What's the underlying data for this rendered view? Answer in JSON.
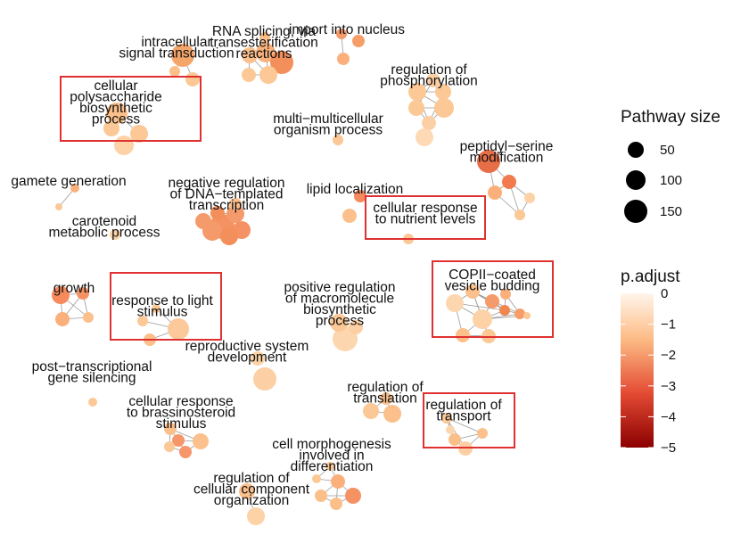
{
  "chart_data": {
    "type": "network",
    "legend": {
      "size_title": "Pathway size",
      "size_entries": [
        {
          "label": "50",
          "value": 50
        },
        {
          "label": "100",
          "value": 100
        },
        {
          "label": "150",
          "value": 150
        }
      ],
      "color_title": "p.adjust",
      "color_ticks": [
        {
          "label": "0",
          "value": 0
        },
        {
          "label": "−1",
          "value": -1
        },
        {
          "label": "−2",
          "value": -2
        },
        {
          "label": "−3",
          "value": -3
        },
        {
          "label": "−4",
          "value": -4
        },
        {
          "label": "−5",
          "value": -5
        }
      ],
      "color_range": [
        -5,
        0
      ],
      "color_stops": [
        "#8b0000",
        "#e34a33",
        "#fdbb84",
        "#fff5eb"
      ]
    },
    "clusters": [
      {
        "label": [
          "intracellular",
          "signal transduction"
        ]
      },
      {
        "label": [
          "RNA splicing, via",
          "transesterification",
          "reactions"
        ]
      },
      {
        "label": [
          "import into nucleus"
        ]
      },
      {
        "label": [
          "cellular",
          "polysaccharide",
          "biosynthetic",
          "process"
        ]
      },
      {
        "label": [
          "regulation of",
          "phosphorylation"
        ]
      },
      {
        "label": [
          "multi−multicellular",
          "organism process"
        ]
      },
      {
        "label": [
          "peptidyl−serine",
          "modification"
        ]
      },
      {
        "label": [
          "gamete generation"
        ]
      },
      {
        "label": [
          "negative regulation",
          "of DNA−templated",
          "transcription"
        ]
      },
      {
        "label": [
          "lipid localization"
        ]
      },
      {
        "label": [
          "cellular response",
          "to nutrient levels"
        ]
      },
      {
        "label": [
          "carotenoid",
          "metabolic process"
        ]
      },
      {
        "label": [
          "growth"
        ]
      },
      {
        "label": [
          "response to light",
          "stimulus"
        ]
      },
      {
        "label": [
          "positive regulation",
          "of macromolecule",
          "biosynthetic",
          "process"
        ]
      },
      {
        "label": [
          "COPII−coated",
          "vesicle budding"
        ]
      },
      {
        "label": [
          "reproductive system",
          "development"
        ]
      },
      {
        "label": [
          "post−transcriptional",
          "gene silencing"
        ]
      },
      {
        "label": [
          "regulation of",
          "translation"
        ]
      },
      {
        "label": [
          "regulation of",
          "transport"
        ]
      },
      {
        "label": [
          "cellular response",
          "to brassinosteroid",
          "stimulus"
        ]
      },
      {
        "label": [
          "cell morphogenesis",
          "involved in",
          "differentiation"
        ]
      },
      {
        "label": [
          "regulation of",
          "cellular component",
          "organization"
        ]
      }
    ]
  }
}
